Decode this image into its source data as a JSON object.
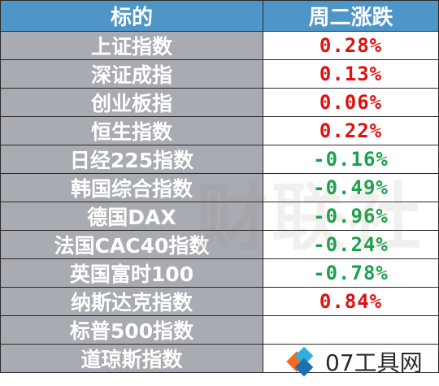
{
  "table": {
    "headers": {
      "name": "标的",
      "change": "周二涨跌"
    },
    "rows": [
      {
        "name": "上证指数",
        "change": "0.28%",
        "dir": "up"
      },
      {
        "name": "深证成指",
        "change": "0.13%",
        "dir": "up"
      },
      {
        "name": "创业板指",
        "change": "0.06%",
        "dir": "up"
      },
      {
        "name": "恒生指数",
        "change": "0.22%",
        "dir": "up"
      },
      {
        "name": "日经225指数",
        "change": "-0.16%",
        "dir": "down"
      },
      {
        "name": "韩国综合指数",
        "change": "-0.49%",
        "dir": "down"
      },
      {
        "name": "德国DAX",
        "change": "-0.96%",
        "dir": "down"
      },
      {
        "name": "法国CAC40指数",
        "change": "-0.24%",
        "dir": "down"
      },
      {
        "name": "英国富时100",
        "change": "-0.78%",
        "dir": "down"
      },
      {
        "name": "纳斯达克指数",
        "change": "0.84%",
        "dir": "up"
      },
      {
        "name": "标普500指数",
        "change": "",
        "dir": "up"
      },
      {
        "name": "道琼斯指数",
        "change": "",
        "dir": "up"
      }
    ]
  },
  "watermark": {
    "text": "财联社"
  },
  "logo": {
    "text": "07工具网"
  },
  "colors": {
    "header_bg": "#4e95c8",
    "name_bg": "#a9abb2",
    "up": "#e01010",
    "down": "#1aa34a"
  }
}
